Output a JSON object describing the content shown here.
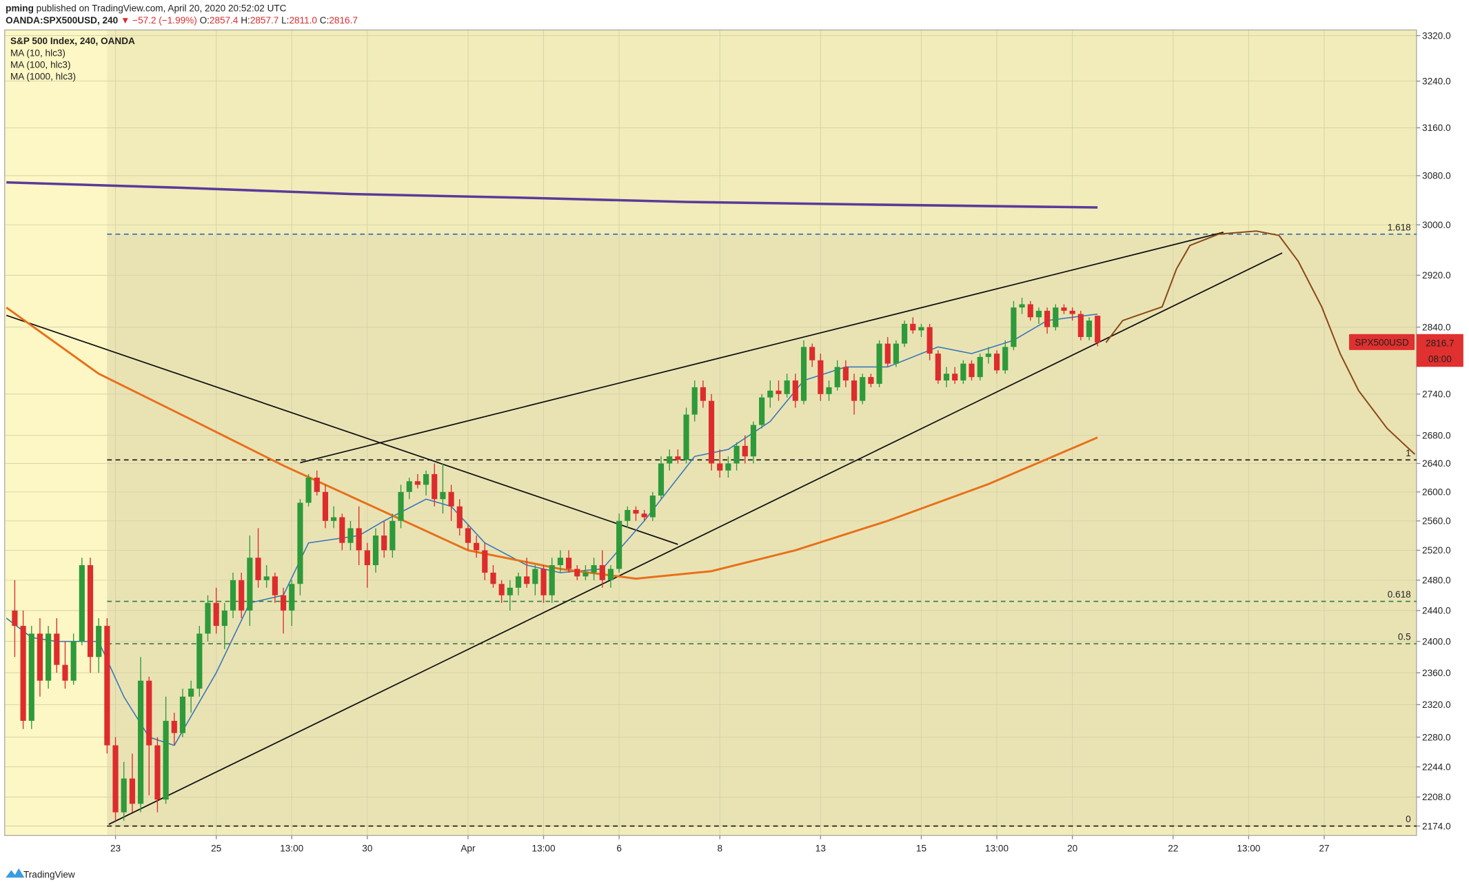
{
  "header": {
    "author": "pming",
    "published": "published on TradingView.com, April 20, 2020 20:52:02 UTC",
    "symbol": "OANDA:SPX500USD, 240",
    "arrow": "▼",
    "change": "−57.2 (−1.99%)",
    "ohlc": [
      [
        "O:",
        "2857.4"
      ],
      [
        "H:",
        "2857.7"
      ],
      [
        "L:",
        "2811.0"
      ],
      [
        "C:",
        "2816.7"
      ]
    ]
  },
  "footer": {
    "brand": "TradingView"
  },
  "chart_data": {
    "type": "candlestick",
    "title": "S&P 500 Index, 240, OANDA",
    "log_scale": true,
    "grid": true,
    "up_color": "#2e9a3a",
    "down_color": "#dd2c2c",
    "xlim": [
      -1.2,
      167
    ],
    "ylim": [
      2163,
      3330
    ],
    "xticks": [
      {
        "value": 12,
        "label": "23"
      },
      {
        "value": 24,
        "label": "25"
      },
      {
        "value": 33,
        "label": "13:00"
      },
      {
        "value": 42,
        "label": "30"
      },
      {
        "value": 54,
        "label": "Apr"
      },
      {
        "value": 63,
        "label": "13:00"
      },
      {
        "value": 72,
        "label": "6"
      },
      {
        "value": 84,
        "label": "8"
      },
      {
        "value": 96,
        "label": "13"
      },
      {
        "value": 108,
        "label": "15"
      },
      {
        "value": 117,
        "label": "13:00"
      },
      {
        "value": 126,
        "label": "20"
      },
      {
        "value": 138,
        "label": "22"
      },
      {
        "value": 147,
        "label": "13:00"
      },
      {
        "value": 156,
        "label": "27"
      }
    ],
    "yticks": [
      {
        "value": 3320,
        "label": "3320.0"
      },
      {
        "value": 3240,
        "label": "3240.0"
      },
      {
        "value": 3160,
        "label": "3160.0"
      },
      {
        "value": 3080,
        "label": "3080.0"
      },
      {
        "value": 3000,
        "label": "3000.0"
      },
      {
        "value": 2920,
        "label": "2920.0"
      },
      {
        "value": 2840,
        "label": "2840.0"
      },
      {
        "value": 2740,
        "label": "2740.0"
      },
      {
        "value": 2680,
        "label": "2680.0"
      },
      {
        "value": 2640,
        "label": "2640.0"
      },
      {
        "value": 2600,
        "label": "2600.0"
      },
      {
        "value": 2560,
        "label": "2560.0"
      },
      {
        "value": 2520,
        "label": "2520.0"
      },
      {
        "value": 2480,
        "label": "2480.0"
      },
      {
        "value": 2440,
        "label": "2440.0"
      },
      {
        "value": 2400,
        "label": "2400.0"
      },
      {
        "value": 2360,
        "label": "2360.0"
      },
      {
        "value": 2320,
        "label": "2320.0"
      },
      {
        "value": 2280,
        "label": "2280.0"
      },
      {
        "value": 2244,
        "label": "2244.0"
      },
      {
        "value": 2208,
        "label": "2208.0"
      },
      {
        "value": 2174,
        "label": "2174.0"
      }
    ],
    "candles": [
      [
        2440,
        2480,
        2380,
        2420
      ],
      [
        2420,
        2440,
        2290,
        2300
      ],
      [
        2300,
        2420,
        2290,
        2410
      ],
      [
        2410,
        2430,
        2330,
        2350
      ],
      [
        2350,
        2420,
        2340,
        2410
      ],
      [
        2410,
        2430,
        2360,
        2370
      ],
      [
        2370,
        2400,
        2340,
        2350
      ],
      [
        2350,
        2410,
        2345,
        2400
      ],
      [
        2400,
        2510,
        2395,
        2500
      ],
      [
        2500,
        2510,
        2360,
        2380
      ],
      [
        2380,
        2430,
        2360,
        2420
      ],
      [
        2420,
        2430,
        2260,
        2270
      ],
      [
        2270,
        2280,
        2180,
        2190
      ],
      [
        2190,
        2250,
        2180,
        2230
      ],
      [
        2230,
        2260,
        2190,
        2200
      ],
      [
        2200,
        2380,
        2190,
        2350
      ],
      [
        2350,
        2355,
        2210,
        2270
      ],
      [
        2270,
        2280,
        2190,
        2205
      ],
      [
        2205,
        2330,
        2200,
        2300
      ],
      [
        2300,
        2310,
        2270,
        2285
      ],
      [
        2285,
        2340,
        2280,
        2330
      ],
      [
        2330,
        2350,
        2310,
        2340
      ],
      [
        2340,
        2420,
        2330,
        2410
      ],
      [
        2410,
        2460,
        2400,
        2450
      ],
      [
        2450,
        2470,
        2410,
        2420
      ],
      [
        2420,
        2450,
        2390,
        2440
      ],
      [
        2440,
        2490,
        2430,
        2480
      ],
      [
        2480,
        2490,
        2430,
        2440
      ],
      [
        2440,
        2540,
        2420,
        2510
      ],
      [
        2510,
        2550,
        2470,
        2480
      ],
      [
        2480,
        2500,
        2470,
        2485
      ],
      [
        2485,
        2490,
        2450,
        2460
      ],
      [
        2460,
        2470,
        2410,
        2440
      ],
      [
        2440,
        2480,
        2420,
        2475
      ],
      [
        2475,
        2590,
        2460,
        2585
      ],
      [
        2585,
        2625,
        2580,
        2620
      ],
      [
        2620,
        2630,
        2595,
        2600
      ],
      [
        2600,
        2610,
        2550,
        2560
      ],
      [
        2560,
        2580,
        2550,
        2565
      ],
      [
        2565,
        2570,
        2520,
        2530
      ],
      [
        2530,
        2560,
        2520,
        2550
      ],
      [
        2550,
        2580,
        2500,
        2520
      ],
      [
        2520,
        2530,
        2470,
        2500
      ],
      [
        2500,
        2550,
        2490,
        2540
      ],
      [
        2540,
        2560,
        2510,
        2520
      ],
      [
        2520,
        2570,
        2510,
        2560
      ],
      [
        2560,
        2610,
        2550,
        2600
      ],
      [
        2600,
        2620,
        2590,
        2615
      ],
      [
        2615,
        2625,
        2605,
        2610
      ],
      [
        2610,
        2630,
        2595,
        2625
      ],
      [
        2625,
        2640,
        2580,
        2590
      ],
      [
        2590,
        2640,
        2570,
        2600
      ],
      [
        2600,
        2610,
        2560,
        2580
      ],
      [
        2580,
        2590,
        2540,
        2550
      ],
      [
        2550,
        2555,
        2520,
        2530
      ],
      [
        2530,
        2540,
        2510,
        2520
      ],
      [
        2520,
        2530,
        2480,
        2490
      ],
      [
        2490,
        2500,
        2470,
        2475
      ],
      [
        2475,
        2480,
        2450,
        2460
      ],
      [
        2460,
        2480,
        2440,
        2470
      ],
      [
        2470,
        2490,
        2460,
        2485
      ],
      [
        2485,
        2510,
        2470,
        2475
      ],
      [
        2475,
        2500,
        2460,
        2495
      ],
      [
        2495,
        2500,
        2450,
        2460
      ],
      [
        2460,
        2510,
        2450,
        2500
      ],
      [
        2500,
        2520,
        2490,
        2510
      ],
      [
        2510,
        2520,
        2490,
        2495
      ],
      [
        2495,
        2500,
        2480,
        2485
      ],
      [
        2485,
        2500,
        2480,
        2490
      ],
      [
        2490,
        2510,
        2480,
        2500
      ],
      [
        2500,
        2520,
        2470,
        2480
      ],
      [
        2480,
        2500,
        2470,
        2495
      ],
      [
        2495,
        2570,
        2490,
        2560
      ],
      [
        2560,
        2580,
        2550,
        2575
      ],
      [
        2575,
        2580,
        2560,
        2570
      ],
      [
        2570,
        2575,
        2560,
        2565
      ],
      [
        2565,
        2600,
        2560,
        2595
      ],
      [
        2595,
        2650,
        2590,
        2640
      ],
      [
        2640,
        2660,
        2630,
        2650
      ],
      [
        2650,
        2660,
        2640,
        2645
      ],
      [
        2645,
        2720,
        2640,
        2710
      ],
      [
        2710,
        2760,
        2700,
        2750
      ],
      [
        2750,
        2760,
        2720,
        2730
      ],
      [
        2730,
        2740,
        2630,
        2640
      ],
      [
        2640,
        2660,
        2620,
        2630
      ],
      [
        2630,
        2650,
        2620,
        2640
      ],
      [
        2640,
        2670,
        2630,
        2665
      ],
      [
        2665,
        2680,
        2640,
        2650
      ],
      [
        2650,
        2700,
        2640,
        2695
      ],
      [
        2695,
        2740,
        2690,
        2735
      ],
      [
        2735,
        2760,
        2720,
        2745
      ],
      [
        2745,
        2760,
        2730,
        2740
      ],
      [
        2740,
        2770,
        2735,
        2760
      ],
      [
        2760,
        2770,
        2720,
        2730
      ],
      [
        2730,
        2820,
        2725,
        2810
      ],
      [
        2810,
        2815,
        2780,
        2790
      ],
      [
        2790,
        2800,
        2730,
        2740
      ],
      [
        2740,
        2760,
        2730,
        2750
      ],
      [
        2750,
        2790,
        2745,
        2780
      ],
      [
        2780,
        2790,
        2750,
        2760
      ],
      [
        2760,
        2770,
        2710,
        2730
      ],
      [
        2730,
        2770,
        2725,
        2765
      ],
      [
        2765,
        2770,
        2750,
        2755
      ],
      [
        2755,
        2820,
        2750,
        2815
      ],
      [
        2815,
        2825,
        2780,
        2785
      ],
      [
        2785,
        2820,
        2780,
        2815
      ],
      [
        2815,
        2850,
        2810,
        2845
      ],
      [
        2845,
        2855,
        2830,
        2835
      ],
      [
        2835,
        2845,
        2825,
        2840
      ],
      [
        2840,
        2845,
        2790,
        2800
      ],
      [
        2800,
        2805,
        2755,
        2760
      ],
      [
        2760,
        2780,
        2750,
        2770
      ],
      [
        2770,
        2780,
        2755,
        2760
      ],
      [
        2760,
        2790,
        2755,
        2785
      ],
      [
        2785,
        2790,
        2760,
        2765
      ],
      [
        2765,
        2800,
        2760,
        2795
      ],
      [
        2795,
        2810,
        2785,
        2800
      ],
      [
        2800,
        2805,
        2770,
        2775
      ],
      [
        2775,
        2820,
        2770,
        2810
      ],
      [
        2810,
        2880,
        2805,
        2870
      ],
      [
        2870,
        2885,
        2860,
        2875
      ],
      [
        2875,
        2880,
        2850,
        2855
      ],
      [
        2855,
        2870,
        2845,
        2865
      ],
      [
        2865,
        2870,
        2830,
        2840
      ],
      [
        2840,
        2875,
        2835,
        2870
      ],
      [
        2870,
        2875,
        2860,
        2865
      ],
      [
        2865,
        2870,
        2850,
        2860
      ],
      [
        2860,
        2865,
        2820,
        2825
      ],
      [
        2825,
        2855,
        2820,
        2850
      ],
      [
        2857.4,
        2857.7,
        2811,
        2816.7
      ]
    ],
    "series": [
      {
        "name": "MA (10, hlc3)",
        "color": "#3a7ab8",
        "x": [
          -1,
          2,
          5,
          10,
          13,
          16,
          19,
          24,
          28,
          32,
          35,
          41,
          44,
          49,
          52,
          56,
          61,
          65,
          70,
          75,
          81,
          85,
          90,
          94,
          99,
          104,
          110,
          114,
          119,
          123,
          129
        ],
        "values": [
          2430,
          2405,
          2400,
          2400,
          2330,
          2280,
          2270,
          2360,
          2450,
          2460,
          2530,
          2540,
          2560,
          2590,
          2580,
          2530,
          2500,
          2490,
          2495,
          2560,
          2650,
          2660,
          2700,
          2760,
          2780,
          2780,
          2810,
          2800,
          2820,
          2850,
          2860
        ]
      },
      {
        "name": "MA (100, hlc3)",
        "color": "#e8701a",
        "x": [
          -1,
          10,
          21,
          32,
          43,
          54,
          65,
          74,
          83,
          93,
          104,
          116,
          129
        ],
        "values": [
          2870,
          2770,
          2703,
          2637,
          2578,
          2520,
          2495,
          2482,
          2492,
          2520,
          2560,
          2611,
          2677
        ]
      },
      {
        "name": "MA (1000, hlc3)",
        "color": "#5b3a9a",
        "x": [
          -1,
          20,
          40,
          60,
          80,
          100,
          129
        ],
        "values": [
          3069,
          3060,
          3050,
          3044,
          3037,
          3033,
          3028
        ]
      }
    ],
    "fib_start": 11,
    "fib_levels": [
      {
        "ratio": 1.618,
        "price": 2985,
        "color": "#3a6fb0"
      },
      {
        "ratio": 1,
        "price": 2645,
        "color": "#111111"
      },
      {
        "ratio": 0.618,
        "price": 2452,
        "color": "#2f7d43"
      },
      {
        "ratio": 0.5,
        "price": 2397,
        "color": "#2f7d43"
      },
      {
        "ratio": 0,
        "price": 2174,
        "color": "#111111"
      }
    ],
    "trendline_color": "#111111",
    "trendlines": [
      {
        "x": [
          11.2,
          151
        ],
        "values": [
          2176,
          2955
        ]
      },
      {
        "x": [
          34,
          144
        ],
        "values": [
          2641,
          2988
        ]
      },
      {
        "x": [
          -1,
          79
        ],
        "values": [
          2858,
          2528
        ]
      }
    ],
    "projection": {
      "color": "#8a4a16",
      "x": [
        130,
        132,
        136.7,
        138.4,
        140,
        143.4,
        147.9,
        150.6,
        152.9,
        155.7,
        157.9,
        160.1,
        163.5,
        166.8
      ],
      "values": [
        2816.7,
        2850,
        2871,
        2930,
        2967,
        2985,
        2990,
        2983,
        2942,
        2871,
        2800,
        2745,
        2690,
        2653
      ]
    },
    "price_label": {
      "symbol": "SPX500USD",
      "countdown": "08:00",
      "color": "#e0302f"
    }
  }
}
